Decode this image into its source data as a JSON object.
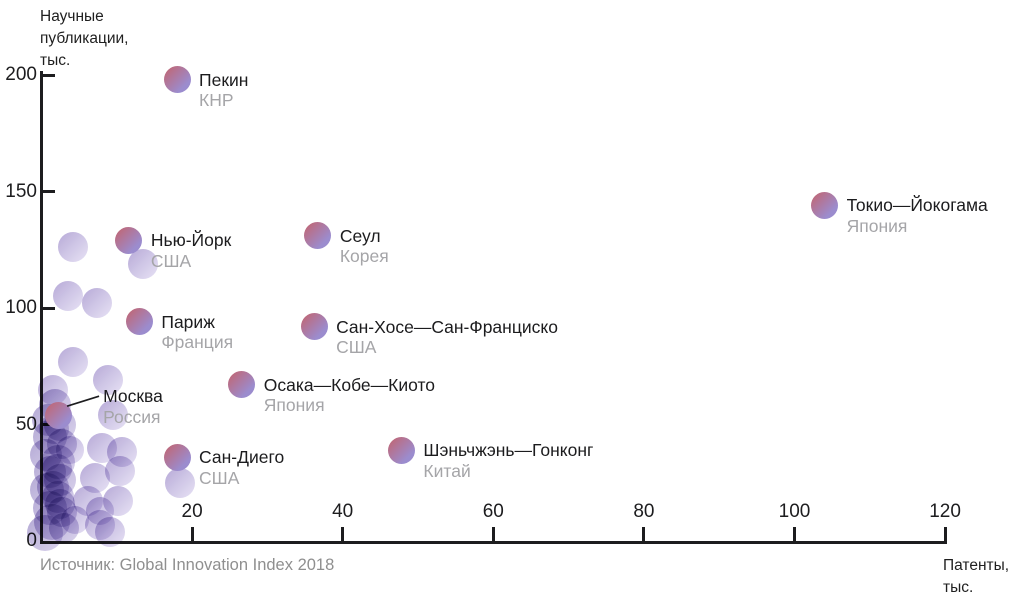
{
  "source": {
    "text": "Источник: Global Innovation Index 2018"
  },
  "colors": {
    "axis": "#1d1d1f",
    "city_text": "#1c1c1e",
    "country_text": "#a5a5a8",
    "source_text": "#8f8f8f",
    "bubble_gradient": [
      "#c4626b",
      "#9b8cce"
    ],
    "background_bubble_gradient": [
      "#b1a3d4",
      "#e3ddf3"
    ]
  },
  "chart_data": {
    "type": "scatter",
    "title": "",
    "xlabel": "Патенты, тыс.",
    "ylabel": "Научные публикации, тыс.",
    "xlabel_lines": [
      "Патенты,",
      "тыс."
    ],
    "ylabel_lines": [
      "Научные",
      "публикации,",
      "тыс."
    ],
    "xlim": [
      0,
      120
    ],
    "ylim": [
      0,
      200
    ],
    "x_ticks": [
      20,
      40,
      60,
      80,
      100,
      120
    ],
    "y_ticks": [
      0,
      50,
      100,
      150,
      200
    ],
    "grid": false,
    "legend": false,
    "points": [
      {
        "id": "beijing",
        "city": "Пекин",
        "country": "КНР",
        "x": 18,
        "y": 198
      },
      {
        "id": "tokyo-yokohama",
        "city": "Токио—Йокогама",
        "country": "Япония",
        "x": 104,
        "y": 144
      },
      {
        "id": "new-york",
        "city": "Нью-Йорк",
        "country": "США",
        "x": 11.6,
        "y": 129
      },
      {
        "id": "seoul",
        "city": "Сеул",
        "country": "Корея",
        "x": 36.7,
        "y": 131
      },
      {
        "id": "paris",
        "city": "Париж",
        "country": "Франция",
        "x": 13,
        "y": 94
      },
      {
        "id": "san-jose-san-francisco",
        "city": "Сан-Хосе—Сан-Франциско",
        "country": "США",
        "x": 36.2,
        "y": 92
      },
      {
        "id": "osaka-kobe-kyoto",
        "city": "Осака—Кобе—Киото",
        "country": "Япония",
        "x": 26.6,
        "y": 67
      },
      {
        "id": "moscow",
        "city": "Москва",
        "country": "Россия",
        "x": 2.2,
        "y": 54,
        "dx": 45,
        "dy": -29,
        "leader": true
      },
      {
        "id": "san-diego",
        "city": "Сан-Диего",
        "country": "США",
        "x": 18,
        "y": 36
      },
      {
        "id": "shenzhen-hong-kong",
        "city": "Шэньчжэнь—Гонконг",
        "country": "Китай",
        "x": 47.8,
        "y": 39
      }
    ],
    "background_points": [
      {
        "x": 4.2,
        "y": 126,
        "r": 15,
        "tone": "light"
      },
      {
        "x": 3.5,
        "y": 105,
        "r": 15,
        "tone": "light"
      },
      {
        "x": 7.4,
        "y": 102,
        "r": 15,
        "tone": "light"
      },
      {
        "x": 13.5,
        "y": 119,
        "r": 15,
        "tone": "light"
      },
      {
        "x": 4.2,
        "y": 77,
        "r": 15,
        "tone": "light"
      },
      {
        "x": 8.8,
        "y": 69,
        "r": 15,
        "tone": "light"
      },
      {
        "x": 1.5,
        "y": 65,
        "r": 15,
        "tone": "light"
      },
      {
        "x": 9.5,
        "y": 54,
        "r": 15,
        "tone": "light"
      },
      {
        "x": 8.0,
        "y": 40,
        "r": 15,
        "tone": "light"
      },
      {
        "x": 10.7,
        "y": 38,
        "r": 15,
        "tone": "light"
      },
      {
        "x": 10.4,
        "y": 30,
        "r": 15,
        "tone": "light"
      },
      {
        "x": 7.1,
        "y": 27,
        "r": 15,
        "tone": "light"
      },
      {
        "x": 6.2,
        "y": 17,
        "r": 15,
        "tone": "light"
      },
      {
        "x": 10.2,
        "y": 17,
        "r": 15,
        "tone": "light"
      },
      {
        "x": 9.1,
        "y": 4,
        "r": 15,
        "tone": "light"
      },
      {
        "x": 18.4,
        "y": 25,
        "r": 15,
        "tone": "light"
      },
      {
        "x": 7.8,
        "y": 7,
        "r": 15,
        "tone": "light"
      },
      {
        "x": 7.8,
        "y": 13,
        "r": 14,
        "tone": "light"
      },
      {
        "x": 4.5,
        "y": 9.1,
        "r": 14,
        "tone": "light"
      },
      {
        "x": 3.8,
        "y": 39.2,
        "r": 14,
        "tone": "light"
      },
      {
        "x": 1.8,
        "y": 58.5,
        "r": 16,
        "tone": "mid"
      },
      {
        "x": 0.9,
        "y": 52,
        "r": 16,
        "tone": "mid"
      },
      {
        "x": 2.5,
        "y": 50,
        "r": 16,
        "tone": "mid"
      },
      {
        "x": 1.1,
        "y": 44.5,
        "r": 17,
        "tone": "mid"
      },
      {
        "x": 2.7,
        "y": 41.5,
        "r": 15,
        "tone": "mid"
      },
      {
        "x": 0.6,
        "y": 37,
        "r": 16,
        "tone": "mid"
      },
      {
        "x": 2.2,
        "y": 34,
        "r": 17,
        "tone": "mid"
      },
      {
        "x": 1.1,
        "y": 29.7,
        "r": 16,
        "tone": "mid"
      },
      {
        "x": 2.5,
        "y": 26.3,
        "r": 16,
        "tone": "mid"
      },
      {
        "x": 0.7,
        "y": 22,
        "r": 17,
        "tone": "mid"
      },
      {
        "x": 2.2,
        "y": 19,
        "r": 16,
        "tone": "mid"
      },
      {
        "x": 1.1,
        "y": 14.2,
        "r": 17,
        "tone": "mid"
      },
      {
        "x": 2.7,
        "y": 12.5,
        "r": 15,
        "tone": "mid"
      },
      {
        "x": 1.4,
        "y": 8.2,
        "r": 18,
        "tone": "mid"
      },
      {
        "x": 3.0,
        "y": 5.6,
        "r": 15,
        "tone": "mid"
      },
      {
        "x": 0.5,
        "y": 3.4,
        "r": 18,
        "tone": "mid"
      },
      {
        "x": 1.6,
        "y": 48,
        "r": 15,
        "tone": "mid"
      },
      {
        "x": 2.0,
        "y": 31,
        "r": 15,
        "tone": "mid"
      },
      {
        "x": 1.5,
        "y": 23,
        "r": 16,
        "tone": "mid"
      },
      {
        "x": 2.4,
        "y": 16,
        "r": 15,
        "tone": "mid"
      }
    ]
  }
}
